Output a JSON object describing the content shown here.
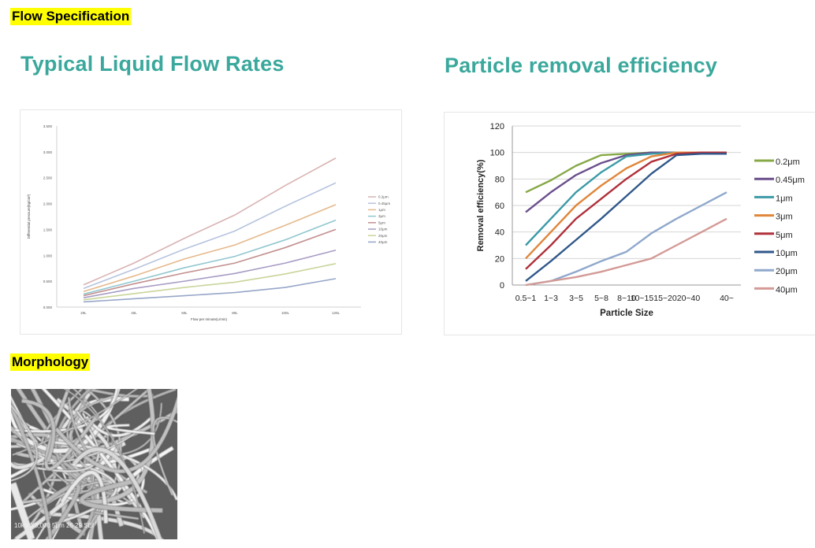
{
  "sections": {
    "flow_label": "Flow Specification",
    "morphology_label": "Morphology"
  },
  "colors": {
    "highlight": "#ffff00",
    "title_teal": "#3aa89c"
  },
  "chart_data": [
    {
      "type": "line",
      "title": "Typical Liquid Flow Rates",
      "xlabel": "Flow per minute(L/min)",
      "ylabel": "Differential pressure(kg/cm²)",
      "categories": [
        "20L",
        "40L",
        "60L",
        "80L",
        "100L",
        "120L"
      ],
      "yticks": [
        "0.000",
        "0.500",
        "1.000",
        "1.500",
        "2.000",
        "2.500",
        "3.000",
        "3.500"
      ],
      "ylim": [
        0,
        3.5
      ],
      "series": [
        {
          "name": "0.2μm",
          "color": "#d9b3b3",
          "values": [
            0.43,
            0.85,
            1.33,
            1.78,
            2.35,
            2.88
          ]
        },
        {
          "name": "0.45μm",
          "color": "#b7c4de",
          "values": [
            0.36,
            0.73,
            1.12,
            1.47,
            1.95,
            2.4
          ]
        },
        {
          "name": "1μm",
          "color": "#e5b98c",
          "values": [
            0.3,
            0.6,
            0.93,
            1.2,
            1.58,
            1.98
          ]
        },
        {
          "name": "3μm",
          "color": "#91c7cf",
          "values": [
            0.25,
            0.5,
            0.76,
            0.98,
            1.3,
            1.68
          ]
        },
        {
          "name": "5μm",
          "color": "#c38f8f",
          "values": [
            0.22,
            0.45,
            0.66,
            0.85,
            1.15,
            1.5
          ]
        },
        {
          "name": "10μm",
          "color": "#a89cc4",
          "values": [
            0.18,
            0.36,
            0.5,
            0.65,
            0.85,
            1.1
          ]
        },
        {
          "name": "20μm",
          "color": "#c9d59a",
          "values": [
            0.14,
            0.26,
            0.38,
            0.48,
            0.64,
            0.84
          ]
        },
        {
          "name": "40μm",
          "color": "#97a6c8",
          "values": [
            0.1,
            0.16,
            0.22,
            0.28,
            0.38,
            0.55
          ]
        }
      ]
    },
    {
      "type": "line",
      "title": "Particle removal efficiency",
      "xlabel": "Particle Size",
      "ylabel": "Removal efficiency(%)",
      "categories": [
        "0.5~1",
        "1~3",
        "3~5",
        "5~8",
        "8~10",
        "10~15",
        "15~20",
        "20~40",
        "40~"
      ],
      "xtick_labels": [
        "0.5~1",
        "1~3",
        "3~5",
        "5~8",
        "8~10",
        "10~1515~2020~40",
        "40~"
      ],
      "yticks": [
        0,
        20,
        40,
        60,
        80,
        100,
        120
      ],
      "ylim": [
        0,
        120
      ],
      "series": [
        {
          "name": "0.2μm",
          "color": "#86a846",
          "values": [
            70,
            79,
            90,
            98,
            99,
            100,
            100,
            100,
            100
          ]
        },
        {
          "name": "0.45μm",
          "color": "#6a4f8c",
          "values": [
            55,
            70,
            83,
            92,
            98,
            100,
            100,
            100,
            100
          ]
        },
        {
          "name": "1μm",
          "color": "#3b9aa6",
          "values": [
            30,
            50,
            70,
            85,
            97,
            99,
            100,
            100,
            100
          ]
        },
        {
          "name": "3μm",
          "color": "#e0863a",
          "values": [
            20,
            40,
            60,
            75,
            88,
            97,
            100,
            100,
            100
          ]
        },
        {
          "name": "5μm",
          "color": "#b0303a",
          "values": [
            12,
            30,
            50,
            65,
            80,
            93,
            99,
            100,
            100
          ]
        },
        {
          "name": "10μm",
          "color": "#30588a",
          "values": [
            3,
            18,
            34,
            50,
            67,
            84,
            98,
            99,
            99
          ]
        },
        {
          "name": "20μm",
          "color": "#8fa8cc",
          "values": [
            0,
            3,
            10,
            18,
            25,
            39,
            50,
            60,
            70
          ]
        },
        {
          "name": "40μm",
          "color": "#d39a96",
          "values": [
            0,
            3,
            6,
            10,
            15,
            20,
            30,
            40,
            50
          ]
        }
      ]
    }
  ],
  "sem_image": {
    "caption": "10kV  X3,000  5μm  26 29 SEI"
  }
}
